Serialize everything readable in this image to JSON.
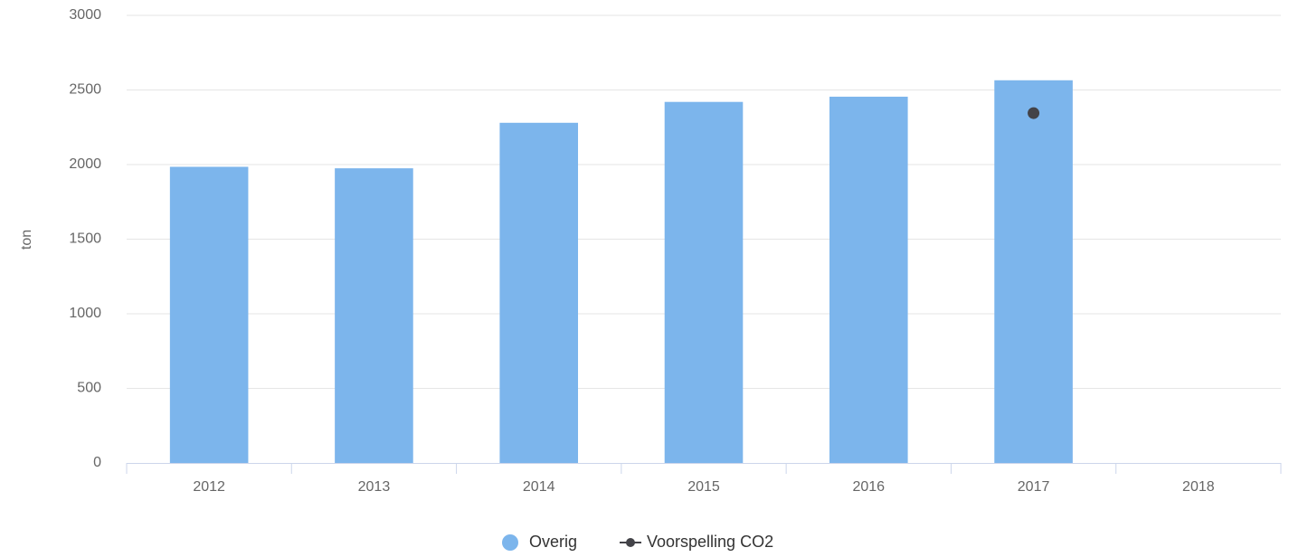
{
  "chart_data": {
    "type": "bar",
    "y_label": "ton",
    "categories": [
      "2012",
      "2013",
      "2014",
      "2015",
      "2016",
      "2017",
      "2018"
    ],
    "series": [
      {
        "name": "Overig",
        "type": "bar",
        "color": "#7cb5ec",
        "values": [
          1985,
          1975,
          2280,
          2420,
          2455,
          2565,
          null
        ]
      },
      {
        "name": "Voorspelling CO2",
        "type": "line",
        "color": "#434348",
        "values": [
          null,
          null,
          null,
          null,
          null,
          2345,
          null
        ]
      }
    ],
    "ylim": [
      0,
      3000
    ],
    "yticks": [
      0,
      500,
      1000,
      1500,
      2000,
      2500,
      3000
    ],
    "grid": true,
    "legend": "bottom"
  }
}
